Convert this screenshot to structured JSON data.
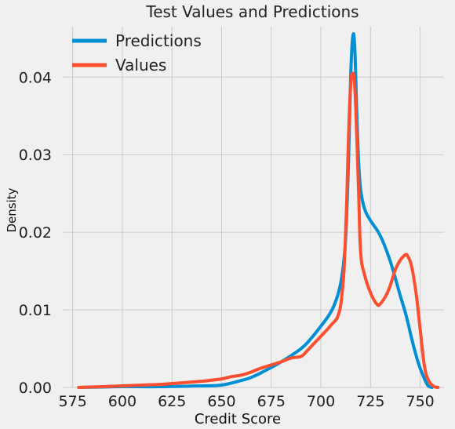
{
  "chart_data": {
    "type": "line",
    "title": "Test Values and Predictions",
    "xlabel": "Credit Score",
    "ylabel": "Density",
    "xlim": [
      570,
      762
    ],
    "ylim": [
      0,
      0.0465
    ],
    "x_ticks": [
      575,
      600,
      625,
      650,
      675,
      700,
      725,
      750
    ],
    "y_ticks": [
      0.0,
      0.01,
      0.02,
      0.03,
      0.04
    ],
    "y_tick_labels": [
      "0.00",
      "0.01",
      "0.02",
      "0.03",
      "0.04"
    ],
    "grid": true,
    "legend_position": "top-left",
    "series": [
      {
        "name": "Predictions",
        "color": "#008fd5",
        "points": [
          [
            578,
            0.0
          ],
          [
            590,
            5e-05
          ],
          [
            600,
            0.0001
          ],
          [
            620,
            0.0001
          ],
          [
            640,
            0.0002
          ],
          [
            650,
            0.0003
          ],
          [
            660,
            0.0009
          ],
          [
            665,
            0.0013
          ],
          [
            670,
            0.0019
          ],
          [
            680,
            0.0033
          ],
          [
            690,
            0.005
          ],
          [
            695,
            0.0063
          ],
          [
            700,
            0.0079
          ],
          [
            704,
            0.0093
          ],
          [
            707,
            0.0108
          ],
          [
            710,
            0.0135
          ],
          [
            712,
            0.0175
          ],
          [
            713,
            0.0225
          ],
          [
            714,
            0.03
          ],
          [
            715,
            0.04
          ],
          [
            716,
            0.0451
          ],
          [
            717,
            0.044
          ],
          [
            718,
            0.036
          ],
          [
            719,
            0.029
          ],
          [
            720,
            0.0255
          ],
          [
            722,
            0.023
          ],
          [
            725,
            0.0215
          ],
          [
            730,
            0.0195
          ],
          [
            735,
            0.0162
          ],
          [
            740,
            0.0118
          ],
          [
            743,
            0.0092
          ],
          [
            746,
            0.006
          ],
          [
            749,
            0.0032
          ],
          [
            752,
            0.0012
          ],
          [
            754,
            0.0002
          ],
          [
            756,
            0.0
          ]
        ]
      },
      {
        "name": "Values",
        "color": "#fc4f30",
        "points": [
          [
            578,
            0.0
          ],
          [
            590,
            0.0001
          ],
          [
            600,
            0.0002
          ],
          [
            610,
            0.0003
          ],
          [
            620,
            0.0004
          ],
          [
            630,
            0.0006
          ],
          [
            640,
            0.0008
          ],
          [
            650,
            0.0011
          ],
          [
            655,
            0.0014
          ],
          [
            660,
            0.0016
          ],
          [
            665,
            0.002
          ],
          [
            670,
            0.0025
          ],
          [
            680,
            0.0033
          ],
          [
            685,
            0.0038
          ],
          [
            690,
            0.004
          ],
          [
            693,
            0.0047
          ],
          [
            697,
            0.0058
          ],
          [
            700,
            0.0066
          ],
          [
            705,
            0.008
          ],
          [
            709,
            0.0095
          ],
          [
            711,
            0.013
          ],
          [
            712,
            0.017
          ],
          [
            713,
            0.024
          ],
          [
            714,
            0.033
          ],
          [
            715,
            0.039
          ],
          [
            716,
            0.0405
          ],
          [
            717,
            0.039
          ],
          [
            718,
            0.033
          ],
          [
            719,
            0.025
          ],
          [
            720,
            0.0175
          ],
          [
            722,
            0.0145
          ],
          [
            725,
            0.0122
          ],
          [
            728,
            0.0108
          ],
          [
            730,
            0.0108
          ],
          [
            734,
            0.0125
          ],
          [
            738,
            0.0155
          ],
          [
            742,
            0.017
          ],
          [
            744,
            0.0168
          ],
          [
            746,
            0.0152
          ],
          [
            748,
            0.012
          ],
          [
            750,
            0.0075
          ],
          [
            752,
            0.003
          ],
          [
            754,
            0.001
          ],
          [
            757,
            0.0001
          ],
          [
            759,
            0.0
          ]
        ]
      }
    ]
  }
}
